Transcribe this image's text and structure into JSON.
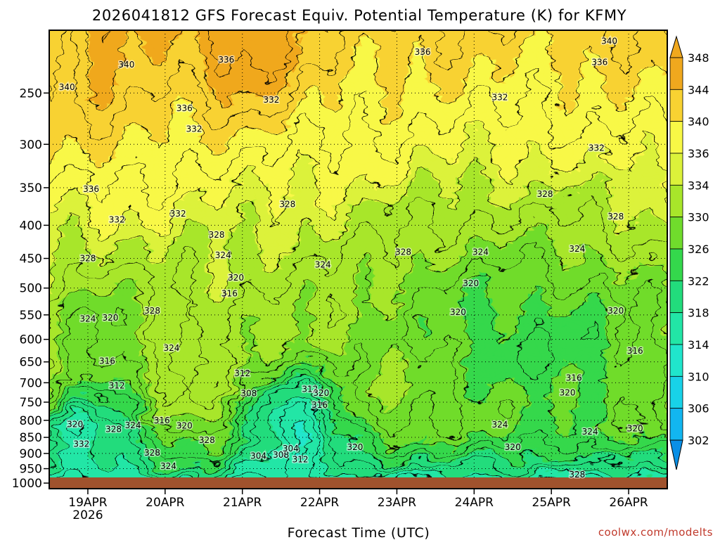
{
  "chart_data": {
    "type": "heatmap",
    "title": "2026041812 GFS Forecast Equiv. Potential Temperature (K) for KFMY",
    "xlabel": "Forecast Time (UTC)",
    "credit": "coolwx.com/modelts",
    "x_ticks": [
      "19APR",
      "20APR",
      "21APR",
      "22APR",
      "23APR",
      "24APR",
      "25APR",
      "26APR"
    ],
    "x_tick_sublabel": "2026",
    "y_ticks": [
      250,
      300,
      350,
      400,
      450,
      500,
      550,
      600,
      650,
      700,
      750,
      800,
      850,
      900,
      950,
      1000
    ],
    "y_range_hpa": [
      200,
      1020
    ],
    "x_range_hours": [
      -12,
      180
    ],
    "y_scale": "log-pressure",
    "grid": "dotted",
    "colorbar": {
      "levels": [
        302,
        306,
        310,
        314,
        318,
        322,
        326,
        330,
        334,
        336,
        340,
        344,
        348
      ],
      "labels": [
        "302",
        "306",
        "310",
        "314",
        "318",
        "322",
        "326",
        "330",
        "334",
        "336",
        "340",
        "344",
        "348"
      ],
      "colors": [
        "#0a8fe6",
        "#12b6f0",
        "#18d2e8",
        "#20e6cc",
        "#22e6a6",
        "#22dc7c",
        "#34d84c",
        "#70dc2c",
        "#a8e62a",
        "#dcf23a",
        "#f8f846",
        "#f8d232",
        "#f0a81e"
      ]
    },
    "contour_labels": [
      {
        "text": "340",
        "hours": -6.5,
        "hpa": 245
      },
      {
        "text": "340",
        "hours": 12,
        "hpa": 226
      },
      {
        "text": "336",
        "hours": 30,
        "hpa": 264
      },
      {
        "text": "332",
        "hours": 33,
        "hpa": 284
      },
      {
        "text": "336",
        "hours": 43,
        "hpa": 222
      },
      {
        "text": "336",
        "hours": 104,
        "hpa": 216
      },
      {
        "text": "340",
        "hours": 162,
        "hpa": 208
      },
      {
        "text": "336",
        "hours": 159,
        "hpa": 224
      },
      {
        "text": "332",
        "hours": 57,
        "hpa": 256
      },
      {
        "text": "332",
        "hours": 128,
        "hpa": 254
      },
      {
        "text": "332",
        "hours": 158,
        "hpa": 304
      },
      {
        "text": "336",
        "hours": 1,
        "hpa": 352
      },
      {
        "text": "332",
        "hours": 9,
        "hpa": 392
      },
      {
        "text": "332",
        "hours": 28,
        "hpa": 384
      },
      {
        "text": "328",
        "hours": 0,
        "hpa": 450
      },
      {
        "text": "328",
        "hours": 40,
        "hpa": 414
      },
      {
        "text": "328",
        "hours": 62,
        "hpa": 371
      },
      {
        "text": "328",
        "hours": 142,
        "hpa": 358
      },
      {
        "text": "328",
        "hours": 164,
        "hpa": 388
      },
      {
        "text": "324",
        "hours": 42,
        "hpa": 445
      },
      {
        "text": "324",
        "hours": 73,
        "hpa": 460
      },
      {
        "text": "328",
        "hours": 98,
        "hpa": 440
      },
      {
        "text": "324",
        "hours": 122,
        "hpa": 440
      },
      {
        "text": "324",
        "hours": 152,
        "hpa": 435
      },
      {
        "text": "320",
        "hours": 46,
        "hpa": 482
      },
      {
        "text": "316",
        "hours": 44,
        "hpa": 510
      },
      {
        "text": "320",
        "hours": 119,
        "hpa": 492
      },
      {
        "text": "324",
        "hours": 0,
        "hpa": 558
      },
      {
        "text": "320",
        "hours": 7,
        "hpa": 556
      },
      {
        "text": "328",
        "hours": 20,
        "hpa": 542
      },
      {
        "text": "324",
        "hours": 26,
        "hpa": 619
      },
      {
        "text": "320",
        "hours": 115,
        "hpa": 545
      },
      {
        "text": "320",
        "hours": 164,
        "hpa": 542
      },
      {
        "text": "316",
        "hours": 6,
        "hpa": 648
      },
      {
        "text": "312",
        "hours": 9,
        "hpa": 707
      },
      {
        "text": "312",
        "hours": 48,
        "hpa": 677
      },
      {
        "text": "308",
        "hours": 50,
        "hpa": 727
      },
      {
        "text": "316",
        "hours": 170,
        "hpa": 625
      },
      {
        "text": "316",
        "hours": 151,
        "hpa": 688
      },
      {
        "text": "312",
        "hours": 69,
        "hpa": 716
      },
      {
        "text": "320",
        "hours": 72.5,
        "hpa": 726
      },
      {
        "text": "316",
        "hours": 72,
        "hpa": 758
      },
      {
        "text": "320",
        "hours": 149,
        "hpa": 725
      },
      {
        "text": "320",
        "hours": -4,
        "hpa": 812
      },
      {
        "text": "328",
        "hours": 8,
        "hpa": 826
      },
      {
        "text": "324",
        "hours": 14,
        "hpa": 815
      },
      {
        "text": "316",
        "hours": 23,
        "hpa": 800
      },
      {
        "text": "320",
        "hours": 30,
        "hpa": 816
      },
      {
        "text": "328",
        "hours": 37,
        "hpa": 858
      },
      {
        "text": "332",
        "hours": -2,
        "hpa": 870
      },
      {
        "text": "324",
        "hours": 128,
        "hpa": 813
      },
      {
        "text": "324",
        "hours": 156,
        "hpa": 833
      },
      {
        "text": "320",
        "hours": 170,
        "hpa": 824
      },
      {
        "text": "328",
        "hours": 20,
        "hpa": 898
      },
      {
        "text": "324",
        "hours": 25,
        "hpa": 942
      },
      {
        "text": "304",
        "hours": 53,
        "hpa": 908
      },
      {
        "text": "308",
        "hours": 60,
        "hpa": 905
      },
      {
        "text": "304",
        "hours": 63,
        "hpa": 885
      },
      {
        "text": "312",
        "hours": 66,
        "hpa": 920
      },
      {
        "text": "320",
        "hours": 83,
        "hpa": 880
      },
      {
        "text": "320",
        "hours": 132,
        "hpa": 880
      },
      {
        "text": "328",
        "hours": 152,
        "hpa": 970
      }
    ]
  }
}
